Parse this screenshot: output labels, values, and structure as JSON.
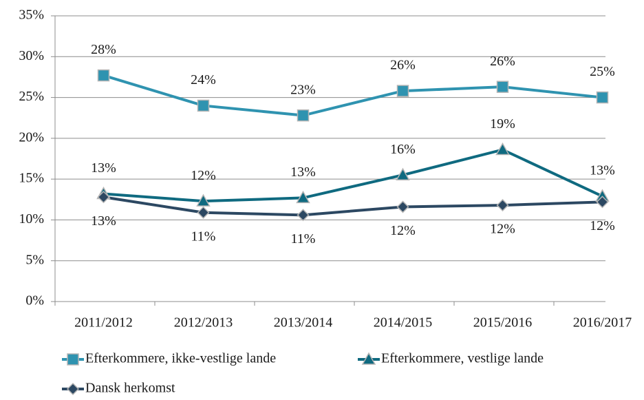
{
  "chart_data": {
    "type": "line",
    "categories": [
      "2011/2012",
      "2012/2013",
      "2013/2014",
      "2014/2015",
      "2015/2016",
      "2016/2017"
    ],
    "series": [
      {
        "name": "Efterkommere, ikke-vestlige lande",
        "color": "#2f93b0",
        "marker": "square",
        "values": [
          27.7,
          24.0,
          22.8,
          25.8,
          26.3,
          25.0
        ],
        "value_labels": [
          "28%",
          "24%",
          "23%",
          "26%",
          "26%",
          "25%"
        ],
        "label_position": "above"
      },
      {
        "name": "Efterkommere, vestlige lande",
        "color": "#0f6a80",
        "marker": "triangle",
        "values": [
          13.2,
          12.3,
          12.7,
          15.5,
          18.6,
          12.9
        ],
        "value_labels": [
          "13%",
          "12%",
          "13%",
          "16%",
          "19%",
          "13%"
        ],
        "label_position": "above"
      },
      {
        "name": "Dansk herkomst",
        "color": "#2c4862",
        "marker": "diamond",
        "values": [
          12.8,
          10.9,
          10.6,
          11.6,
          11.8,
          12.2
        ],
        "value_labels": [
          "13%",
          "11%",
          "11%",
          "12%",
          "12%",
          "12%"
        ],
        "label_position": "below"
      }
    ],
    "ylim": [
      0,
      35
    ],
    "yticks": [
      {
        "value": 0,
        "label": "0%"
      },
      {
        "value": 5,
        "label": "5%"
      },
      {
        "value": 10,
        "label": "10%"
      },
      {
        "value": 15,
        "label": "15%"
      },
      {
        "value": 20,
        "label": "20%"
      },
      {
        "value": 25,
        "label": "25%"
      },
      {
        "value": 30,
        "label": "30%"
      },
      {
        "value": 35,
        "label": "35%"
      }
    ],
    "grid": true,
    "legend": "bottom"
  }
}
